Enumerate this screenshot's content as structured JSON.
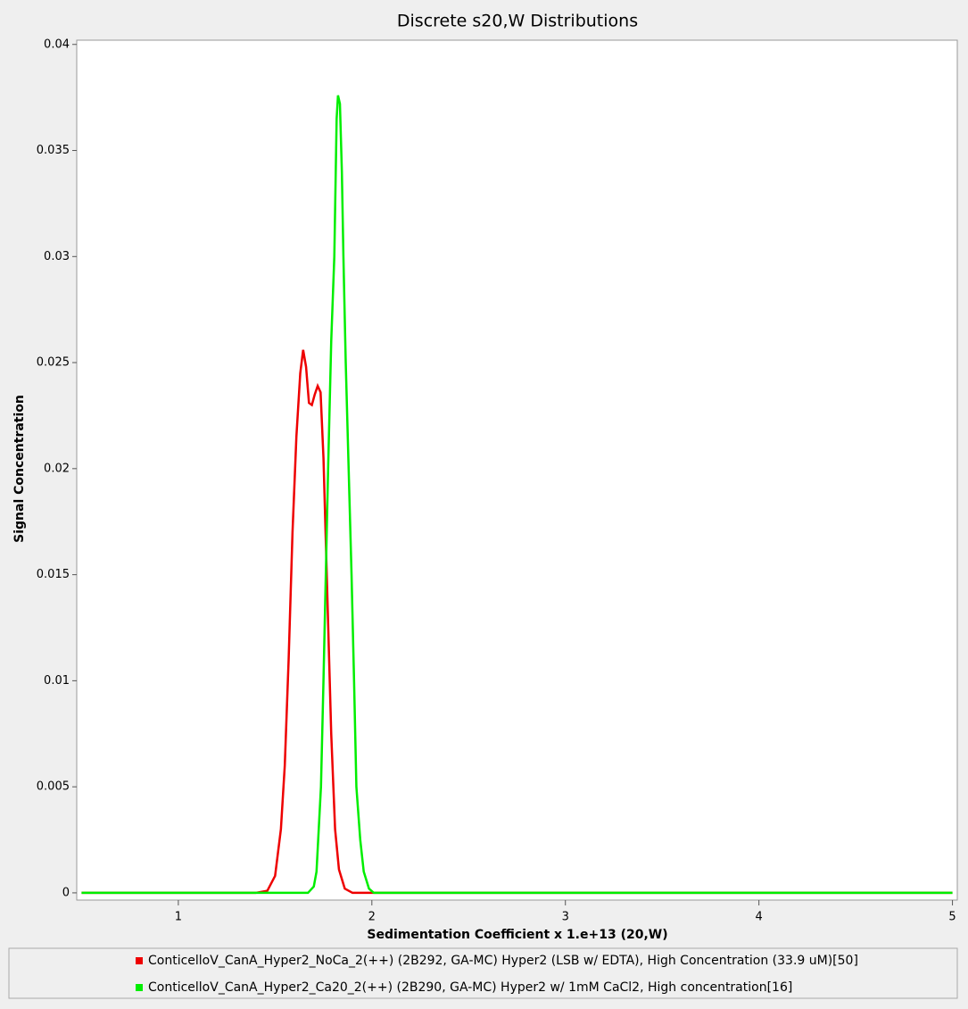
{
  "chart_data": {
    "type": "line",
    "title": "Discrete s20,W Distributions",
    "xlabel": "Sedimentation Coefficient x 1.e+13 (20,W)",
    "ylabel": "Signal Concentration",
    "xlim": [
      0.475,
      5.025
    ],
    "ylim": [
      -0.00034,
      0.0402
    ],
    "xticks": [
      1,
      2,
      3,
      4,
      5
    ],
    "yticks": [
      0,
      0.005,
      0.01,
      0.015,
      0.02,
      0.025,
      0.03,
      0.035,
      0.04
    ],
    "series": [
      {
        "name": "ConticelloV_CanA_Hyper2_NoCa_2(++) (2B292, GA-MC) Hyper2 (LSB w/ EDTA), High Concentration (33.9 uM)[50]",
        "color": "#ee0000",
        "x": [
          0.5,
          1.4,
          1.46,
          1.5,
          1.53,
          1.55,
          1.57,
          1.59,
          1.61,
          1.63,
          1.645,
          1.66,
          1.675,
          1.69,
          1.705,
          1.72,
          1.735,
          1.75,
          1.77,
          1.79,
          1.81,
          1.83,
          1.86,
          1.9,
          5
        ],
        "values": [
          0,
          0,
          0.0001,
          0.0008,
          0.003,
          0.006,
          0.011,
          0.017,
          0.0215,
          0.0245,
          0.0256,
          0.0248,
          0.0231,
          0.023,
          0.0235,
          0.0239,
          0.0236,
          0.0205,
          0.014,
          0.0075,
          0.003,
          0.0011,
          0.0002,
          0,
          0
        ]
      },
      {
        "name": "ConticelloV_CanA_Hyper2_Ca20_2(++) (2B290, GA-MC) Hyper2 w/ 1mM CaCl2, High concentration[16]",
        "color": "#00ee00",
        "x": [
          0.5,
          1.67,
          1.7,
          1.714,
          1.737,
          1.75,
          1.774,
          1.79,
          1.806,
          1.818,
          1.825,
          1.835,
          1.845,
          1.853,
          1.865,
          1.88,
          1.895,
          1.908,
          1.92,
          1.94,
          1.958,
          1.985,
          2.01,
          5
        ],
        "values": [
          0,
          0,
          0.0003,
          0.001,
          0.005,
          0.01,
          0.02,
          0.026,
          0.03,
          0.0365,
          0.0376,
          0.0372,
          0.034,
          0.03,
          0.025,
          0.02,
          0.015,
          0.01,
          0.005,
          0.0025,
          0.001,
          0.0002,
          0,
          0
        ]
      }
    ]
  }
}
